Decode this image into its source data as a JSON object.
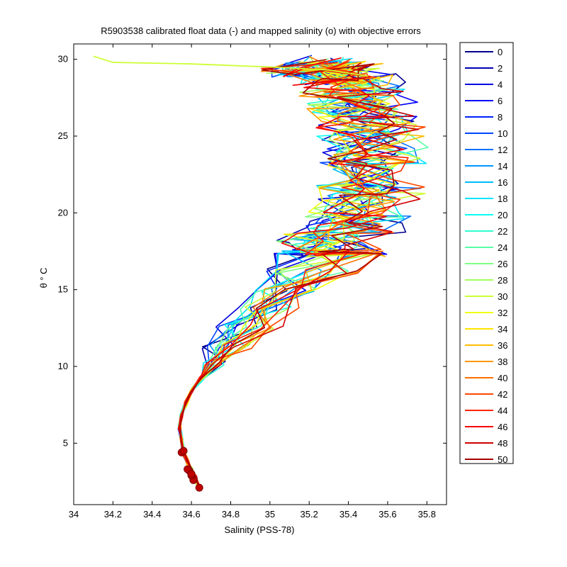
{
  "chart_data": {
    "type": "line",
    "title": "R5903538 calibrated float data (-) and mapped salinity (o) with objective errors",
    "xlabel": "Salinity (PSS-78)",
    "ylabel": "θ ° C",
    "xlim": [
      34.0,
      35.9
    ],
    "ylim": [
      1.0,
      31.0
    ],
    "xticks": [
      "34",
      "34.2",
      "34.4",
      "34.6",
      "34.8",
      "35",
      "35.2",
      "35.4",
      "35.6",
      "35.8"
    ],
    "xtick_values": [
      34.0,
      34.2,
      34.4,
      34.6,
      34.8,
      35.0,
      35.2,
      35.4,
      35.6,
      35.8
    ],
    "yticks": [
      "5",
      "10",
      "15",
      "20",
      "25",
      "30"
    ],
    "ytick_values": [
      5,
      10,
      15,
      20,
      25,
      30
    ],
    "grid": false,
    "legend_position": "outside-right",
    "legend_entries": [
      "0",
      "2",
      "4",
      "6",
      "8",
      "10",
      "12",
      "14",
      "16",
      "18",
      "20",
      "22",
      "24",
      "26",
      "28",
      "30",
      "32",
      "34",
      "36",
      "38",
      "40",
      "42",
      "44",
      "46",
      "48",
      "50"
    ],
    "legend_colors": [
      "#00008f",
      "#0000b3",
      "#0000df",
      "#0000ff",
      "#0020ff",
      "#0048ff",
      "#0070ff",
      "#0094ff",
      "#00bcff",
      "#00e4ff",
      "#0cfff3",
      "#30ffcf",
      "#58ffa7",
      "#7cff83",
      "#a4ff5b",
      "#ccff33",
      "#f0ff0f",
      "#ffe400",
      "#ffbc00",
      "#ff9800",
      "#ff7000",
      "#ff4800",
      "#ff2400",
      "#f70000",
      "#cf0000",
      "#a70000"
    ],
    "series_note_markers": "mapped salinity circles near deep end",
    "deep_profile_core": {
      "x": [
        34.64,
        34.62,
        34.6,
        34.58,
        34.56,
        34.55,
        34.54,
        34.55,
        34.57,
        34.6,
        34.65,
        34.72,
        34.8,
        34.9,
        35.0,
        35.1,
        35.2,
        35.3
      ],
      "y": [
        2.0,
        2.8,
        3.3,
        3.8,
        4.4,
        5.2,
        6.0,
        6.8,
        7.6,
        8.4,
        9.2,
        10.2,
        11.3,
        12.6,
        13.8,
        15.0,
        16.2,
        17.4
      ]
    },
    "mapped_salinity_points": {
      "x": [
        34.64,
        34.61,
        34.6,
        34.59,
        34.58,
        34.55,
        34.56,
        34.6
      ],
      "y": [
        2.1,
        2.6,
        2.9,
        3.2,
        3.3,
        4.4,
        4.5,
        3.0
      ]
    },
    "upper_envelope": {
      "x": [
        35.3,
        35.42,
        35.5,
        35.52,
        35.5,
        35.45,
        35.4,
        35.35,
        35.2
      ],
      "y": [
        17.4,
        19.0,
        21.0,
        23.0,
        25.0,
        26.5,
        27.8,
        28.6,
        29.0
      ]
    },
    "surface_outlier": {
      "x": [
        34.1,
        34.2,
        34.6,
        35.0,
        35.3,
        35.5
      ],
      "y": [
        30.2,
        29.8,
        29.7,
        29.5,
        29.3,
        28.9
      ]
    }
  }
}
